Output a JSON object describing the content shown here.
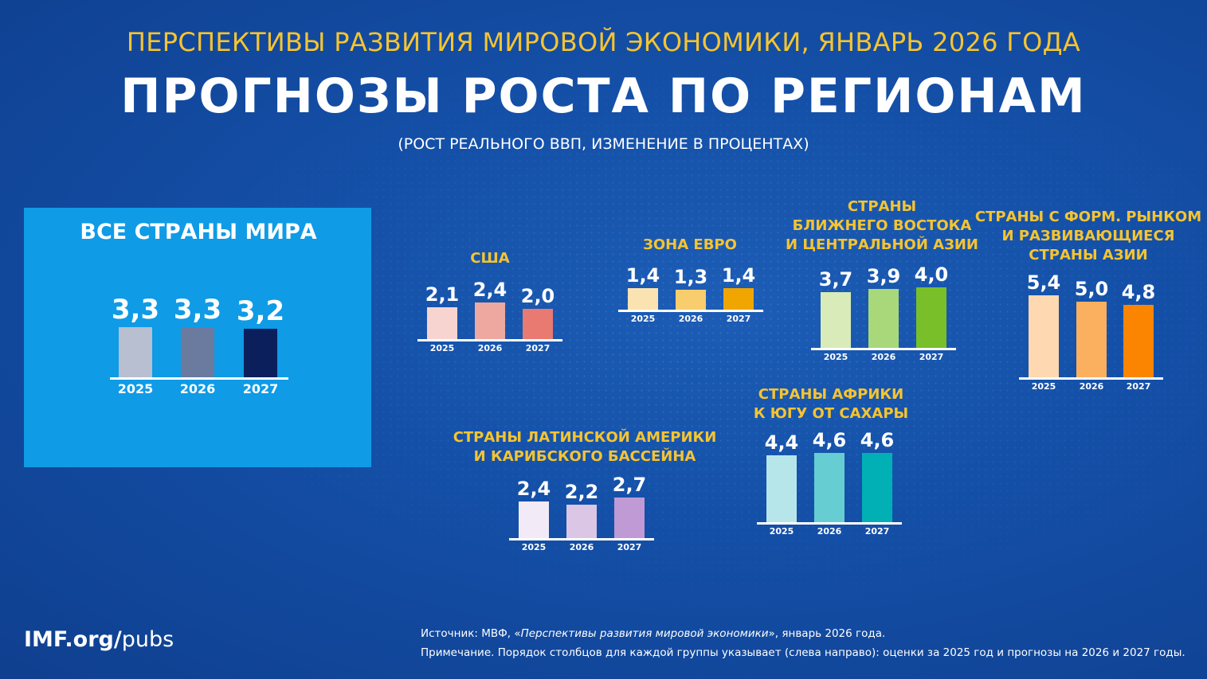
{
  "header": {
    "supertitle": "ПЕРСПЕКТИВЫ РАЗВИТИЯ МИРОВОЙ ЭКОНОМИКИ, ЯНВАРЬ 2026 ГОДА",
    "title": "ПРОГНОЗЫ РОСТА ПО РЕГИОНАМ",
    "subtitle": "(РОСТ РЕАЛЬНОГО ВВП, ИЗМЕНЕНИЕ В ПРОЦЕНТАХ)"
  },
  "chart_data": [
    {
      "type": "bar",
      "title": "ВСЕ СТРАНЫ МИРА",
      "categories": [
        "2025",
        "2026",
        "2027"
      ],
      "values": [
        3.3,
        3.3,
        3.2
      ],
      "labels": [
        "3,3",
        "3,3",
        "3,2"
      ],
      "colors": [
        "#b8bfd0",
        "#6b7ba0",
        "#0a1f5c"
      ]
    },
    {
      "type": "bar",
      "title": "США",
      "categories": [
        "2025",
        "2026",
        "2027"
      ],
      "values": [
        2.1,
        2.4,
        2.0
      ],
      "labels": [
        "2,1",
        "2,4",
        "2,0"
      ],
      "colors": [
        "#f7d4d0",
        "#eea8a0",
        "#e87a72"
      ]
    },
    {
      "type": "bar",
      "title": "ЗОНА ЕВРО",
      "categories": [
        "2025",
        "2026",
        "2027"
      ],
      "values": [
        1.4,
        1.3,
        1.4
      ],
      "labels": [
        "1,4",
        "1,3",
        "1,4"
      ],
      "colors": [
        "#fae3b0",
        "#f7cd6e",
        "#f0a500"
      ]
    },
    {
      "type": "bar",
      "title": "СТРАНЫ\nБЛИЖНЕГО ВОСТОКА\nИ ЦЕНТРАЛЬНОЙ АЗИИ",
      "categories": [
        "2025",
        "2026",
        "2027"
      ],
      "values": [
        3.7,
        3.9,
        4.0
      ],
      "labels": [
        "3,7",
        "3,9",
        "4,0"
      ],
      "colors": [
        "#d8ebb8",
        "#a9d87a",
        "#78bf2a"
      ]
    },
    {
      "type": "bar",
      "title": "СТРАНЫ С ФОРМ. РЫНКОМ\nИ РАЗВИВАЮЩИЕСЯ\nСТРАНЫ АЗИИ",
      "categories": [
        "2025",
        "2026",
        "2027"
      ],
      "values": [
        5.4,
        5.0,
        4.8
      ],
      "labels": [
        "5,4",
        "5,0",
        "4,8"
      ],
      "colors": [
        "#fdd8b0",
        "#fbb060",
        "#fb8500"
      ]
    },
    {
      "type": "bar",
      "title": "СТРАНЫ АФРИКИ\nК ЮГУ ОТ САХАРЫ",
      "categories": [
        "2025",
        "2026",
        "2027"
      ],
      "values": [
        4.4,
        4.6,
        4.6
      ],
      "labels": [
        "4,4",
        "4,6",
        "4,6"
      ],
      "colors": [
        "#b6e6ea",
        "#66cdd2",
        "#00b0b5"
      ]
    },
    {
      "type": "bar",
      "title": "СТРАНЫ ЛАТИНСКОЙ АМЕРИКИ\nИ КАРИБСКОГО БАССЕЙНА",
      "categories": [
        "2025",
        "2026",
        "2027"
      ],
      "values": [
        2.4,
        2.2,
        2.7
      ],
      "labels": [
        "2,4",
        "2,2",
        "2,7"
      ],
      "colors": [
        "#f2eaf6",
        "#dcc6e6",
        "#c09ad4"
      ]
    }
  ],
  "footer": {
    "logo_bold": "IMF.org/",
    "logo_light": "pubs",
    "source_prefix": "Источник: МВФ, «",
    "source_title": "Перспективы развития мировой экономики",
    "source_suffix": "», январь 2026 года.",
    "note": "Примечание. Порядок столбцов для каждой группы указывает (слева направо): оценки за 2025 год и прогнозы на 2026 и 2027 годы."
  }
}
